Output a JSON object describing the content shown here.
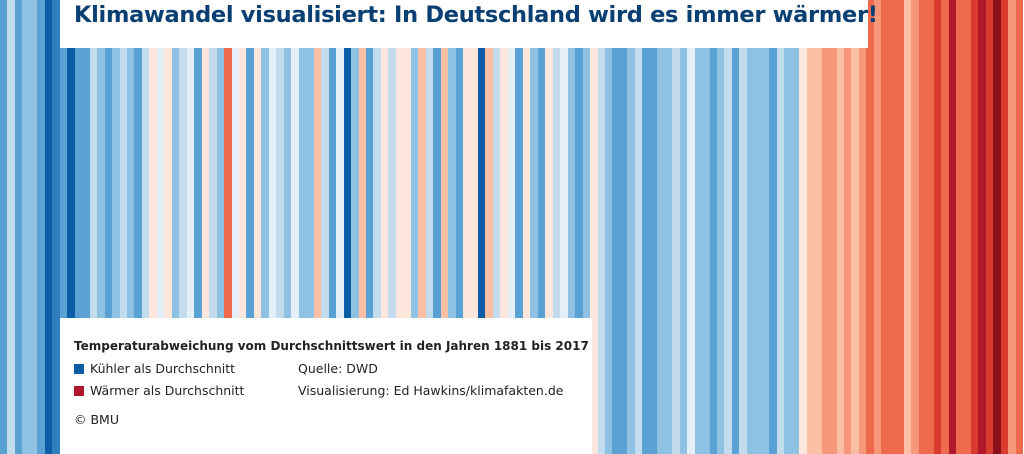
{
  "title": "Klimawandel visualisiert: In Deutschland wird es immer wärmer!",
  "subtitle": "Temperaturabweichung vom Durchschnittswert in den Jahren 1881 bis 2017",
  "legend": {
    "cooler_label": "Kühler als Durchschnitt",
    "warmer_label": "Wärmer als Durchschnitt",
    "cooler_color": "#0c5da5",
    "warmer_color": "#b2182b"
  },
  "source": "Quelle: DWD",
  "visualization": "Visualisierung: Ed Hawkins/klimafakten.de",
  "copyright": "© BMU",
  "colors": {
    "title": "#0a3f73",
    "scale": [
      "#08306b",
      "#0c5da5",
      "#2f7fbf",
      "#5aa2d3",
      "#8fc2e2",
      "#c2dcee",
      "#e4eff8",
      "#fde6dc",
      "#fbbfa6",
      "#f7977a",
      "#ef6a4c",
      "#d93b2e",
      "#b2182b",
      "#8b0f1a"
    ]
  },
  "chart_data": {
    "type": "heatmap",
    "x_start": 1881,
    "x_end": 2017,
    "values": [
      -0.8,
      -0.3,
      -0.9,
      -0.6,
      -0.5,
      -0.9,
      -1.6,
      -1.2,
      -0.8,
      -1.4,
      -0.9,
      -0.7,
      -0.3,
      -0.5,
      -0.7,
      -0.4,
      -0.1,
      -0.6,
      -0.8,
      -0.3,
      0.5,
      0.1,
      0.6,
      -0.4,
      -0.3,
      0.2,
      -0.8,
      0.4,
      -0.2,
      -0.5,
      1.3,
      0.1,
      0.6,
      -0.7,
      0.3,
      -0.5,
      0.1,
      -0.3,
      -0.6,
      0.2,
      -0.6,
      -0.4,
      0.7,
      -0.3,
      -0.9,
      0.2,
      -1.6,
      -0.4,
      0.8,
      -0.7,
      -0.1,
      0.6,
      -0.2,
      0.5,
      0.6,
      -0.6,
      0.9,
      -0.3,
      -0.8,
      0.7,
      -0.5,
      -0.7,
      0.5,
      0.3,
      -1.4,
      0.8,
      -0.3,
      0.6,
      0.2,
      -0.8,
      0.5,
      -0.6,
      -0.8,
      0.4,
      -0.3,
      0.1,
      -0.5,
      -0.9,
      -0.6,
      0.3,
      -0.1,
      -0.4,
      -0.8,
      -1.0,
      -0.5,
      -0.2,
      -0.7,
      -0.9,
      -0.6,
      -0.4,
      -0.3,
      -0.6,
      0.1,
      -0.4,
      -0.6,
      -0.8,
      -0.5,
      -0.3,
      -0.7,
      -0.2,
      -0.6,
      -0.5,
      -0.4,
      -0.8,
      -0.2,
      -0.4,
      -0.6,
      0.6,
      0.9,
      0.7,
      1.2,
      1.1,
      0.8,
      1.0,
      0.9,
      1.1,
      1.3,
      1.0,
      1.4,
      1.5,
      1.4,
      0.9,
      1.2,
      1.6,
      1.5,
      1.7,
      1.3,
      2.0,
      1.4,
      1.6,
      1.9,
      2.1,
      1.8,
      2.4,
      1.7,
      1.2,
      1.6
    ]
  }
}
